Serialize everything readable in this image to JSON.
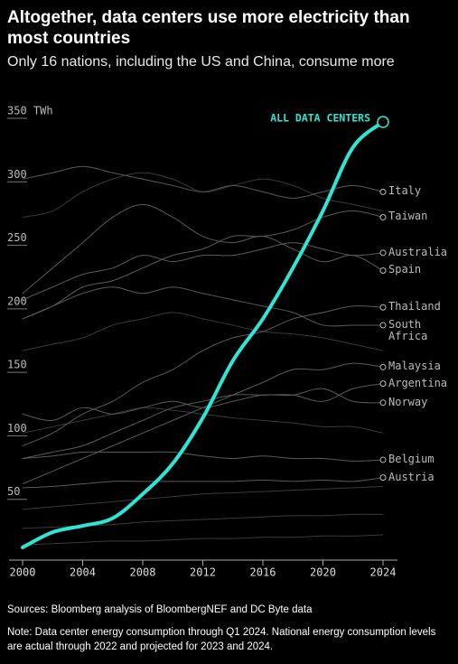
{
  "chart_data": {
    "type": "line",
    "title": "Altogether, data centers use more electricity than most countries",
    "subtitle": "Only 16 nations, including the US and China, consume more",
    "source": "Sources: Bloomberg analysis of BloombergNEF and DC Byte data",
    "note": "Note: Data center energy consumption through Q1 2024. National energy consumption levels are actual through 2022 and projected for 2023 and 2024.",
    "x": [
      2000,
      2002,
      2004,
      2006,
      2008,
      2010,
      2012,
      2014,
      2016,
      2018,
      2020,
      2022,
      2024
    ],
    "xlim": [
      2000,
      2024
    ],
    "xticks": [
      2000,
      2004,
      2008,
      2012,
      2016,
      2020,
      2024
    ],
    "ylim": [
      0,
      350
    ],
    "yticks": [
      50,
      100,
      150,
      200,
      250,
      300,
      {
        "value": 350,
        "label": "350 TWh"
      }
    ],
    "series": [
      {
        "values": [
          270,
          275,
          290,
          300,
          305,
          300,
          290,
          295,
          300,
          295,
          285,
          280,
          275
        ],
        "color": "#3a3a3a"
      },
      {
        "values": [
          165,
          170,
          175,
          185,
          190,
          195,
          190,
          185,
          180,
          178,
          175,
          170,
          165
        ],
        "color": "#3a3a3a"
      },
      {
        "values": [
          100,
          105,
          110,
          115,
          120,
          118,
          115,
          112,
          110,
          108,
          105,
          105,
          100
        ],
        "color": "#3a3a3a"
      },
      {
        "values": [
          40,
          42,
          44,
          46,
          48,
          50,
          52,
          53,
          54,
          55,
          56,
          57,
          58
        ],
        "color": "#3a3a3a"
      },
      {
        "values": [
          25,
          26,
          27,
          28,
          30,
          31,
          32,
          33,
          34,
          35,
          35,
          36,
          36
        ],
        "color": "#3a3a3a"
      },
      {
        "values": [
          12,
          13,
          14,
          15,
          15,
          16,
          17,
          17,
          18,
          18,
          19,
          19,
          20
        ],
        "color": "#3a3a3a"
      },
      {
        "name": "Italy",
        "color": "#5a5a5a",
        "values": [
          300,
          305,
          310,
          305,
          300,
          295,
          290,
          295,
          290,
          285,
          290,
          295,
          290
        ]
      },
      {
        "name": "Taiwan",
        "color": "#5a5a5a",
        "values": [
          190,
          200,
          215,
          220,
          230,
          240,
          245,
          255,
          255,
          260,
          270,
          275,
          270
        ]
      },
      {
        "name": "Australia",
        "color": "#5a5a5a",
        "values": [
          205,
          215,
          225,
          230,
          240,
          235,
          240,
          240,
          245,
          250,
          245,
          240,
          242
        ]
      },
      {
        "name": "Spain",
        "color": "#5a5a5a",
        "values": [
          210,
          230,
          250,
          270,
          280,
          270,
          255,
          250,
          255,
          245,
          235,
          240,
          228
        ]
      },
      {
        "name": "Thailand",
        "color": "#5a5a5a",
        "values": [
          90,
          100,
          115,
          125,
          140,
          150,
          165,
          175,
          180,
          190,
          195,
          200,
          199
        ]
      },
      {
        "name": "South Africa",
        "color": "#5a5a5a",
        "values": [
          190,
          200,
          210,
          215,
          210,
          215,
          210,
          205,
          200,
          195,
          185,
          185,
          185
        ]
      },
      {
        "name": "Malaysia",
        "color": "#5a5a5a",
        "values": [
          60,
          70,
          80,
          90,
          100,
          110,
          120,
          130,
          140,
          150,
          150,
          155,
          152
        ]
      },
      {
        "name": "Argentina",
        "color": "#5a5a5a",
        "values": [
          80,
          85,
          90,
          100,
          110,
          120,
          125,
          130,
          130,
          130,
          125,
          135,
          139
        ]
      },
      {
        "name": "Norway",
        "color": "#5a5a5a",
        "values": [
          115,
          110,
          120,
          115,
          120,
          125,
          120,
          125,
          130,
          130,
          135,
          125,
          124
        ]
      },
      {
        "name": "Belgium",
        "color": "#5a5a5a",
        "values": [
          80,
          82,
          85,
          85,
          85,
          85,
          82,
          80,
          82,
          80,
          80,
          78,
          79
        ]
      },
      {
        "name": "Austria",
        "color": "#5a5a5a",
        "values": [
          57,
          58,
          60,
          62,
          62,
          62,
          62,
          62,
          63,
          62,
          63,
          62,
          65
        ]
      },
      {
        "name": "ALL DATA CENTERS",
        "color": "#2ee6d6",
        "highlight": true,
        "values": [
          10,
          22,
          27,
          33,
          52,
          76,
          112,
          157,
          190,
          230,
          275,
          325,
          345
        ]
      }
    ]
  }
}
